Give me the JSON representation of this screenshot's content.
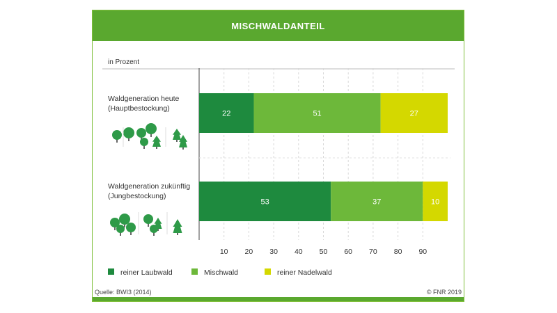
{
  "title": "MISCHWALDANTEIL",
  "unit_label": "in Prozent",
  "source": "Quelle: BWI3 (2014)",
  "copyright": "© FNR 2019",
  "colors": {
    "header": "#5aa82f",
    "laubwald": "#1e8a3e",
    "mischwald": "#6db83a",
    "nadelwald": "#d4d800",
    "tree": "#2e9a48"
  },
  "chart_data": {
    "type": "bar",
    "orientation": "horizontal",
    "stacked": true,
    "title": "MISCHWALDANTEIL",
    "xlabel": "in Prozent",
    "xlim": [
      0,
      100
    ],
    "xticks": [
      10,
      20,
      30,
      40,
      50,
      60,
      70,
      80,
      90
    ],
    "grid": true,
    "legend_position": "bottom",
    "categories": [
      {
        "line1": "Waldgeneration heute",
        "line2": "(Hauptbestockung)"
      },
      {
        "line1": "Waldgeneration zukünftig",
        "line2": "(Jungbestockung)"
      }
    ],
    "series": [
      {
        "name": "reiner Laubwald",
        "values": [
          22,
          53
        ],
        "color": "#1e8a3e"
      },
      {
        "name": "Mischwald",
        "values": [
          51,
          37
        ],
        "color": "#6db83a"
      },
      {
        "name": "reiner Nadelwald",
        "values": [
          27,
          10
        ],
        "color": "#d4d800"
      }
    ]
  }
}
